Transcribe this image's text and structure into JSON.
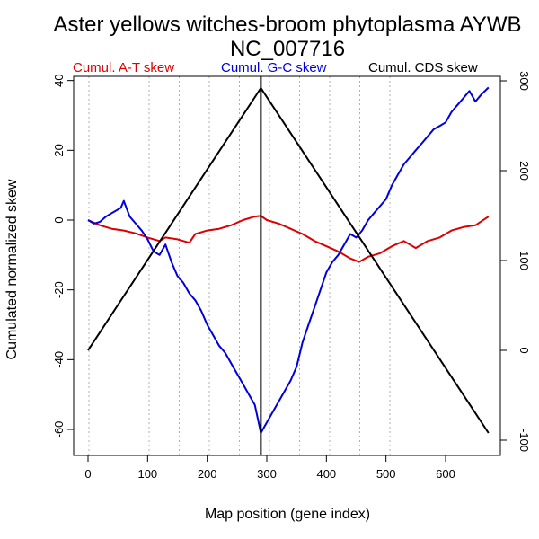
{
  "chart_data": {
    "type": "line",
    "title": "Aster yellows witches-broom phytoplasma AYWB",
    "subtitle": "NC_007716",
    "xlabel": "Map position (gene index)",
    "ylabel": "Cumulated normalized skew",
    "xlim": [
      0,
      672
    ],
    "ylim_left": [
      -65,
      42
    ],
    "ylim_right": [
      -100,
      300
    ],
    "x_ticks": [
      0,
      100,
      200,
      300,
      400,
      500,
      600
    ],
    "y_ticks_left": [
      -60,
      -40,
      -20,
      0,
      20,
      40
    ],
    "y_ticks_right": [
      -100,
      0,
      100,
      200,
      300
    ],
    "grid": "vertical-dotted",
    "legend_position": "top",
    "vline_x": 290,
    "series": [
      {
        "name": "Cumul. A-T skew",
        "color": "#dd0000",
        "axis": "left",
        "x": [
          0,
          20,
          40,
          60,
          80,
          100,
          120,
          130,
          150,
          170,
          180,
          200,
          220,
          240,
          260,
          280,
          290,
          300,
          320,
          340,
          360,
          380,
          400,
          420,
          440,
          455,
          470,
          490,
          510,
          530,
          550,
          570,
          590,
          610,
          630,
          650,
          672
        ],
        "values": [
          0,
          -1.5,
          -2.5,
          -3,
          -3.8,
          -5,
          -6,
          -5,
          -5.5,
          -6.5,
          -4,
          -3,
          -2.5,
          -1.5,
          0,
          1,
          1.2,
          0,
          -1,
          -2.5,
          -4,
          -6,
          -7.5,
          -9,
          -11,
          -12,
          -10.5,
          -9.5,
          -7.5,
          -6,
          -8,
          -6,
          -5,
          -3,
          -2,
          -1.5,
          1
        ]
      },
      {
        "name": "Cumul. G-C skew",
        "color": "#0000dd",
        "axis": "left",
        "x": [
          0,
          10,
          20,
          30,
          40,
          55,
          60,
          70,
          80,
          90,
          100,
          110,
          120,
          130,
          140,
          150,
          160,
          170,
          180,
          190,
          200,
          210,
          220,
          230,
          240,
          250,
          260,
          270,
          280,
          290,
          300,
          310,
          320,
          330,
          340,
          350,
          360,
          370,
          380,
          390,
          400,
          410,
          420,
          430,
          440,
          450,
          460,
          470,
          480,
          490,
          500,
          510,
          520,
          530,
          540,
          550,
          560,
          570,
          580,
          590,
          600,
          610,
          620,
          630,
          640,
          650,
          660,
          672
        ],
        "values": [
          0,
          -1,
          -0.5,
          1,
          2,
          3.5,
          5.5,
          1,
          -1,
          -3,
          -5.5,
          -9,
          -10,
          -7,
          -12,
          -16,
          -18,
          -21,
          -23,
          -26,
          -30,
          -33,
          -36,
          -38,
          -41,
          -44,
          -47,
          -50,
          -53,
          -61,
          -58,
          -55,
          -52,
          -49,
          -46,
          -42,
          -35,
          -30,
          -25,
          -20,
          -15,
          -12,
          -10,
          -7,
          -4,
          -5,
          -3,
          0,
          2,
          4,
          6,
          10,
          13,
          16,
          18,
          20,
          22,
          24,
          26,
          27,
          28,
          31,
          33,
          35,
          37,
          34,
          36,
          38
        ]
      },
      {
        "name": "Cumul. CDS skew",
        "color": "#000000",
        "axis": "right",
        "x": [
          0,
          290,
          672
        ],
        "values": [
          0,
          292,
          -92
        ]
      }
    ]
  }
}
